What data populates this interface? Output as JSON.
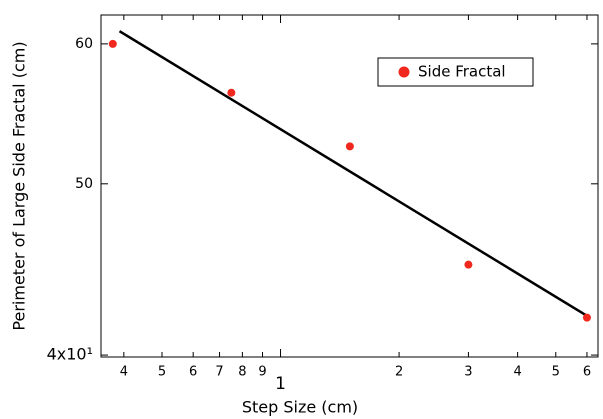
{
  "chart_data": {
    "type": "scatter",
    "x_label": "Step Size (cm)",
    "y_label": "Perimeter of Large Side Fractal (cm)",
    "xscale": "log",
    "yscale": "log",
    "xlim": [
      0.35,
      6.4
    ],
    "ylim": [
      39.9,
      62.3
    ],
    "xticks": [
      {
        "value": 0.4,
        "label": "4"
      },
      {
        "value": 0.5,
        "label": "5"
      },
      {
        "value": 0.6,
        "label": "6"
      },
      {
        "value": 0.7,
        "label": "7"
      },
      {
        "value": 0.8,
        "label": "8"
      },
      {
        "value": 0.9,
        "label": "9"
      },
      1,
      2,
      3,
      4,
      5,
      6
    ],
    "yticks": [
      {
        "value": 40,
        "label": "4x10¹"
      },
      50,
      60
    ],
    "series": [
      {
        "name": "Side Fractal",
        "color": "#f0281e",
        "x": [
          0.375,
          0.75,
          1.5,
          3,
          6
        ],
        "values": [
          60,
          56.3,
          52.5,
          45,
          42
        ]
      }
    ],
    "fit": {
      "color": "#000000",
      "x": [
        0.39,
        6
      ],
      "values": [
        61,
        42.1
      ]
    },
    "legend": "upper right"
  }
}
